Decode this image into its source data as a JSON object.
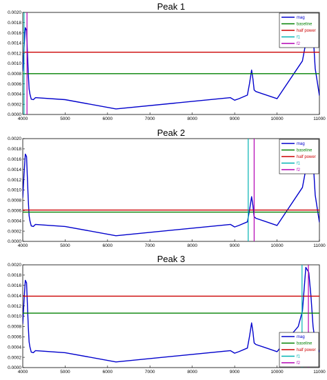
{
  "chart_data": [
    {
      "type": "line",
      "title": "Peak 1",
      "xlim": [
        4000,
        11000
      ],
      "ylim": [
        0,
        0.002
      ],
      "x_ticks": [
        "4000",
        "5000",
        "6000",
        "7000",
        "8000",
        "9000",
        "10000",
        "11000"
      ],
      "y_ticks": [
        "0.0000",
        "0.0002",
        "0.0004",
        "0.0006",
        "0.0008",
        "0.0010",
        "0.0012",
        "0.0014",
        "0.0016",
        "0.0018",
        "0.0020"
      ],
      "grid": false,
      "legend_position": "top-right",
      "legend": [
        {
          "label": "mag",
          "color": "#0000cc"
        },
        {
          "label": "baseline",
          "color": "#008000"
        },
        {
          "label": "half power",
          "color": "#cc0000"
        },
        {
          "label": "f1",
          "color": "#00b3b3"
        },
        {
          "label": "f2",
          "color": "#b300b3"
        }
      ],
      "series": [
        {
          "name": "mag",
          "color": "#0000cc",
          "type": "line",
          "x": [
            4000,
            4030,
            4060,
            4090,
            4110,
            4130,
            4150,
            4170,
            4200,
            4250,
            4300,
            5000,
            6200,
            8900,
            9000,
            9100,
            9300,
            9350,
            9400,
            9430,
            9460,
            9500,
            10000,
            10600,
            10700,
            10800,
            10850,
            10900,
            11000
          ],
          "y": [
            0.00085,
            0.0013,
            0.0017,
            0.00165,
            0.0012,
            0.0008,
            0.0005,
            0.0004,
            0.0003,
            0.00029,
            0.00033,
            0.00029,
            0.00011,
            0.00033,
            0.00028,
            0.00031,
            0.00038,
            0.0006,
            0.00087,
            0.0007,
            0.00048,
            0.00045,
            0.00031,
            0.00105,
            0.0015,
            0.0019,
            0.0016,
            0.0009,
            0.00037
          ]
        },
        {
          "name": "baseline",
          "color": "#008000",
          "type": "hline",
          "y": 0.0008
        },
        {
          "name": "half power",
          "color": "#cc0000",
          "type": "hline",
          "y": 0.00122
        },
        {
          "name": "f1",
          "color": "#00b3b3",
          "type": "vline",
          "x": 4030
        },
        {
          "name": "f2",
          "color": "#b300b3",
          "type": "vline",
          "x": 4100
        }
      ]
    },
    {
      "type": "line",
      "title": "Peak 2",
      "xlim": [
        4000,
        11000
      ],
      "ylim": [
        0,
        0.002
      ],
      "x_ticks": [
        "4000",
        "5000",
        "6000",
        "7000",
        "8000",
        "9000",
        "10000",
        "11000"
      ],
      "y_ticks": [
        "0.0000",
        "0.0002",
        "0.0004",
        "0.0006",
        "0.0008",
        "0.0010",
        "0.0012",
        "0.0014",
        "0.0016",
        "0.0018",
        "0.0020"
      ],
      "grid": false,
      "legend_position": "top-right",
      "legend": [
        {
          "label": "mag",
          "color": "#0000cc"
        },
        {
          "label": "baseline",
          "color": "#008000"
        },
        {
          "label": "half power",
          "color": "#cc0000"
        },
        {
          "label": "f1",
          "color": "#00b3b3"
        },
        {
          "label": "f2",
          "color": "#b300b3"
        }
      ],
      "series": [
        {
          "name": "mag",
          "color": "#0000cc",
          "type": "line",
          "x": [
            4000,
            4030,
            4060,
            4090,
            4110,
            4130,
            4150,
            4170,
            4200,
            4250,
            4300,
            5000,
            6200,
            8900,
            9000,
            9100,
            9300,
            9350,
            9400,
            9430,
            9460,
            9500,
            10000,
            10600,
            10700,
            10800,
            10850,
            10900,
            11000
          ],
          "y": [
            0.00085,
            0.0013,
            0.0017,
            0.00165,
            0.0012,
            0.0008,
            0.0005,
            0.0004,
            0.0003,
            0.00029,
            0.00033,
            0.00029,
            0.00011,
            0.00033,
            0.00028,
            0.00031,
            0.00038,
            0.0006,
            0.00087,
            0.0007,
            0.00048,
            0.00045,
            0.00031,
            0.00105,
            0.0015,
            0.0019,
            0.0016,
            0.0009,
            0.00037
          ]
        },
        {
          "name": "baseline",
          "color": "#008000",
          "type": "hline",
          "y": 0.00057
        },
        {
          "name": "half power",
          "color": "#cc0000",
          "type": "hline",
          "y": 0.00061
        },
        {
          "name": "f1",
          "color": "#00b3b3",
          "type": "vline",
          "x": 9320
        },
        {
          "name": "f2",
          "color": "#b300b3",
          "type": "vline",
          "x": 9460
        }
      ]
    },
    {
      "type": "line",
      "title": "Peak 3",
      "xlim": [
        4000,
        11000
      ],
      "ylim": [
        0,
        0.002
      ],
      "x_ticks": [
        "4000",
        "5000",
        "6000",
        "7000",
        "8000",
        "9000",
        "10000",
        "11000"
      ],
      "y_ticks": [
        "0.0000",
        "0.0002",
        "0.0004",
        "0.0006",
        "0.0008",
        "0.0010",
        "0.0012",
        "0.0014",
        "0.0016",
        "0.0018",
        "0.0020"
      ],
      "grid": false,
      "legend_position": "bottom-right",
      "legend": [
        {
          "label": "mag",
          "color": "#0000cc"
        },
        {
          "label": "baseline",
          "color": "#008000"
        },
        {
          "label": "half power",
          "color": "#cc0000"
        },
        {
          "label": "f1",
          "color": "#00b3b3"
        },
        {
          "label": "f2",
          "color": "#b300b3"
        }
      ],
      "series": [
        {
          "name": "mag",
          "color": "#0000cc",
          "type": "line",
          "x": [
            4000,
            4030,
            4060,
            4090,
            4110,
            4130,
            4150,
            4170,
            4200,
            4250,
            4300,
            5000,
            6200,
            8900,
            9000,
            9100,
            9300,
            9350,
            9400,
            9430,
            9460,
            9500,
            10000,
            10500,
            10600,
            10680,
            10750,
            10800,
            10850,
            10900,
            11000
          ],
          "y": [
            0.00085,
            0.0013,
            0.0017,
            0.00165,
            0.0012,
            0.0008,
            0.0005,
            0.0004,
            0.0003,
            0.00029,
            0.00033,
            0.00029,
            0.00011,
            0.00033,
            0.00028,
            0.00031,
            0.00038,
            0.0006,
            0.00087,
            0.0007,
            0.00048,
            0.00045,
            0.00031,
            0.0008,
            0.0011,
            0.00195,
            0.00185,
            0.0014,
            0.0008,
            0.0005,
            0.0003
          ]
        },
        {
          "name": "baseline",
          "color": "#008000",
          "type": "hline",
          "y": 0.00106
        },
        {
          "name": "half power",
          "color": "#cc0000",
          "type": "hline",
          "y": 0.00139
        },
        {
          "name": "f1",
          "color": "#00b3b3",
          "type": "vline",
          "x": 10590
        },
        {
          "name": "f2",
          "color": "#b300b3",
          "type": "vline",
          "x": 10740
        }
      ]
    }
  ]
}
